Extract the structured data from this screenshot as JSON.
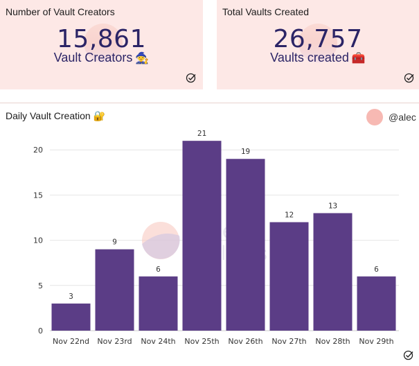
{
  "cards": [
    {
      "title": "Number of Vault Creators",
      "value": "15,861",
      "label": "Vault Creators",
      "emoji": "🧙"
    },
    {
      "title": "Total Vaults Created",
      "value": "26,757",
      "label": "Vaults created",
      "emoji": "🧰"
    }
  ],
  "chart_panel": {
    "title": "Daily Vault Creation",
    "title_emoji": "🔐",
    "author": "@alec",
    "watermark_line1": "Dune",
    "watermark_line2": "Analytics"
  },
  "colors": {
    "card_bg": "#fde8e6",
    "bar": "#5b3d86",
    "number_text": "#2b2466",
    "avatar": "#f7b9b3"
  },
  "chart_data": {
    "type": "bar",
    "categories": [
      "Nov 22nd",
      "Nov 23rd",
      "Nov 24th",
      "Nov 25th",
      "Nov 26th",
      "Nov 27th",
      "Nov 28th",
      "Nov 29th"
    ],
    "values": [
      3,
      9,
      6,
      21,
      19,
      12,
      13,
      6
    ],
    "yticks": [
      0,
      5,
      10,
      15,
      20
    ],
    "ylim": [
      0,
      22
    ],
    "grid": true,
    "data_labels": true
  }
}
